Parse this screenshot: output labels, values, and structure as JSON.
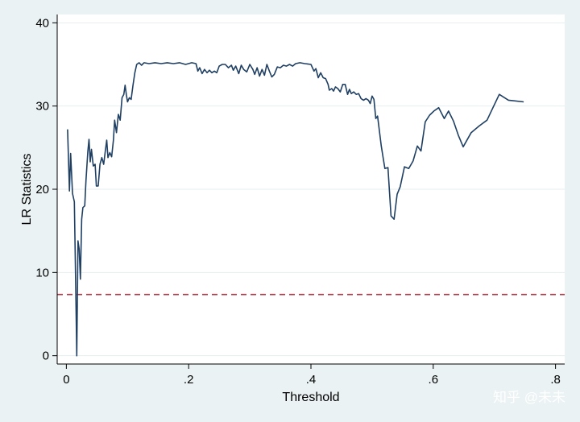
{
  "chart_data": {
    "type": "line",
    "title": "",
    "xlabel": "Threshold",
    "ylabel": "LR Statistics",
    "xlim": [
      -0.015,
      0.815
    ],
    "ylim": [
      -1,
      41
    ],
    "xticks": [
      0,
      0.2,
      0.4,
      0.6,
      0.8
    ],
    "xtick_labels": [
      "0",
      ".2",
      ".4",
      ".6",
      ".8"
    ],
    "yticks": [
      0,
      10,
      20,
      30,
      40
    ],
    "ytick_labels": [
      "0",
      "10",
      "20",
      "30",
      "40"
    ],
    "grid": "horizontal",
    "reference_line": {
      "y": 7.35,
      "style": "dashed",
      "color": "#b03a48"
    },
    "series": [
      {
        "color": "#1f3f63",
        "points": [
          [
            0.002,
            27.2
          ],
          [
            0.005,
            19.8
          ],
          [
            0.007,
            24.3
          ],
          [
            0.01,
            19.5
          ],
          [
            0.013,
            18.5
          ],
          [
            0.015,
            9.5
          ],
          [
            0.017,
            0.0
          ],
          [
            0.019,
            13.8
          ],
          [
            0.021,
            12.8
          ],
          [
            0.023,
            9.2
          ],
          [
            0.025,
            16.4
          ],
          [
            0.027,
            17.8
          ],
          [
            0.03,
            18.0
          ],
          [
            0.032,
            21.0
          ],
          [
            0.035,
            24.5
          ],
          [
            0.037,
            26.0
          ],
          [
            0.039,
            23.3
          ],
          [
            0.041,
            24.8
          ],
          [
            0.044,
            22.8
          ],
          [
            0.047,
            23.0
          ],
          [
            0.049,
            20.4
          ],
          [
            0.052,
            20.4
          ],
          [
            0.055,
            23.0
          ],
          [
            0.058,
            23.8
          ],
          [
            0.061,
            23.0
          ],
          [
            0.064,
            24.8
          ],
          [
            0.066,
            25.9
          ],
          [
            0.068,
            23.8
          ],
          [
            0.071,
            24.4
          ],
          [
            0.074,
            23.9
          ],
          [
            0.077,
            25.9
          ],
          [
            0.079,
            28.3
          ],
          [
            0.082,
            26.8
          ],
          [
            0.085,
            29.0
          ],
          [
            0.088,
            28.3
          ],
          [
            0.091,
            31.0
          ],
          [
            0.094,
            31.4
          ],
          [
            0.096,
            32.5
          ],
          [
            0.098,
            31.4
          ],
          [
            0.1,
            30.5
          ],
          [
            0.103,
            31.0
          ],
          [
            0.106,
            30.8
          ],
          [
            0.109,
            32.5
          ],
          [
            0.112,
            34.0
          ],
          [
            0.115,
            35.0
          ],
          [
            0.119,
            35.2
          ],
          [
            0.123,
            34.9
          ],
          [
            0.127,
            35.2
          ],
          [
            0.135,
            35.1
          ],
          [
            0.145,
            35.2
          ],
          [
            0.155,
            35.1
          ],
          [
            0.165,
            35.2
          ],
          [
            0.175,
            35.1
          ],
          [
            0.185,
            35.2
          ],
          [
            0.195,
            35.0
          ],
          [
            0.205,
            35.2
          ],
          [
            0.212,
            35.1
          ],
          [
            0.215,
            34.2
          ],
          [
            0.218,
            34.6
          ],
          [
            0.222,
            33.9
          ],
          [
            0.226,
            34.4
          ],
          [
            0.23,
            34.0
          ],
          [
            0.234,
            34.3
          ],
          [
            0.238,
            34.0
          ],
          [
            0.242,
            34.2
          ],
          [
            0.246,
            34.0
          ],
          [
            0.25,
            34.8
          ],
          [
            0.255,
            35.0
          ],
          [
            0.26,
            35.0
          ],
          [
            0.265,
            34.6
          ],
          [
            0.27,
            34.9
          ],
          [
            0.273,
            34.3
          ],
          [
            0.277,
            34.8
          ],
          [
            0.282,
            33.9
          ],
          [
            0.286,
            34.9
          ],
          [
            0.29,
            34.4
          ],
          [
            0.295,
            34.1
          ],
          [
            0.3,
            35.0
          ],
          [
            0.305,
            34.4
          ],
          [
            0.308,
            33.8
          ],
          [
            0.312,
            34.6
          ],
          [
            0.316,
            33.6
          ],
          [
            0.32,
            34.4
          ],
          [
            0.324,
            33.7
          ],
          [
            0.328,
            35.0
          ],
          [
            0.332,
            34.2
          ],
          [
            0.336,
            33.5
          ],
          [
            0.34,
            33.8
          ],
          [
            0.345,
            34.7
          ],
          [
            0.35,
            34.6
          ],
          [
            0.355,
            34.9
          ],
          [
            0.36,
            34.8
          ],
          [
            0.365,
            35.0
          ],
          [
            0.37,
            34.8
          ],
          [
            0.375,
            35.1
          ],
          [
            0.382,
            35.2
          ],
          [
            0.39,
            35.1
          ],
          [
            0.4,
            35.0
          ],
          [
            0.405,
            34.2
          ],
          [
            0.408,
            34.5
          ],
          [
            0.412,
            33.4
          ],
          [
            0.416,
            34.0
          ],
          [
            0.42,
            33.4
          ],
          [
            0.424,
            33.3
          ],
          [
            0.428,
            32.6
          ],
          [
            0.43,
            31.9
          ],
          [
            0.434,
            32.1
          ],
          [
            0.437,
            31.8
          ],
          [
            0.44,
            32.3
          ],
          [
            0.444,
            32.1
          ],
          [
            0.448,
            31.7
          ],
          [
            0.452,
            32.6
          ],
          [
            0.456,
            32.6
          ],
          [
            0.46,
            31.4
          ],
          [
            0.463,
            32.0
          ],
          [
            0.466,
            31.5
          ],
          [
            0.47,
            31.7
          ],
          [
            0.474,
            31.4
          ],
          [
            0.478,
            31.5
          ],
          [
            0.482,
            30.9
          ],
          [
            0.486,
            30.7
          ],
          [
            0.49,
            30.9
          ],
          [
            0.494,
            30.7
          ],
          [
            0.497,
            30.3
          ],
          [
            0.5,
            31.2
          ],
          [
            0.503,
            30.8
          ],
          [
            0.506,
            28.5
          ],
          [
            0.509,
            28.8
          ],
          [
            0.512,
            27.0
          ],
          [
            0.515,
            25.2
          ],
          [
            0.518,
            23.8
          ],
          [
            0.521,
            22.5
          ],
          [
            0.526,
            22.6
          ],
          [
            0.531,
            16.8
          ],
          [
            0.536,
            16.4
          ],
          [
            0.541,
            19.4
          ],
          [
            0.546,
            20.3
          ],
          [
            0.553,
            22.7
          ],
          [
            0.56,
            22.5
          ],
          [
            0.567,
            23.4
          ],
          [
            0.574,
            25.2
          ],
          [
            0.58,
            24.6
          ],
          [
            0.587,
            28.1
          ],
          [
            0.594,
            28.9
          ],
          [
            0.601,
            29.4
          ],
          [
            0.609,
            29.8
          ],
          [
            0.618,
            28.5
          ],
          [
            0.625,
            29.4
          ],
          [
            0.633,
            28.2
          ],
          [
            0.641,
            26.5
          ],
          [
            0.649,
            25.1
          ],
          [
            0.662,
            26.8
          ],
          [
            0.675,
            27.6
          ],
          [
            0.688,
            28.3
          ],
          [
            0.697,
            29.7
          ],
          [
            0.708,
            31.4
          ],
          [
            0.723,
            30.7
          ],
          [
            0.748,
            30.5
          ]
        ]
      }
    ]
  },
  "watermark": "知乎 @未未"
}
